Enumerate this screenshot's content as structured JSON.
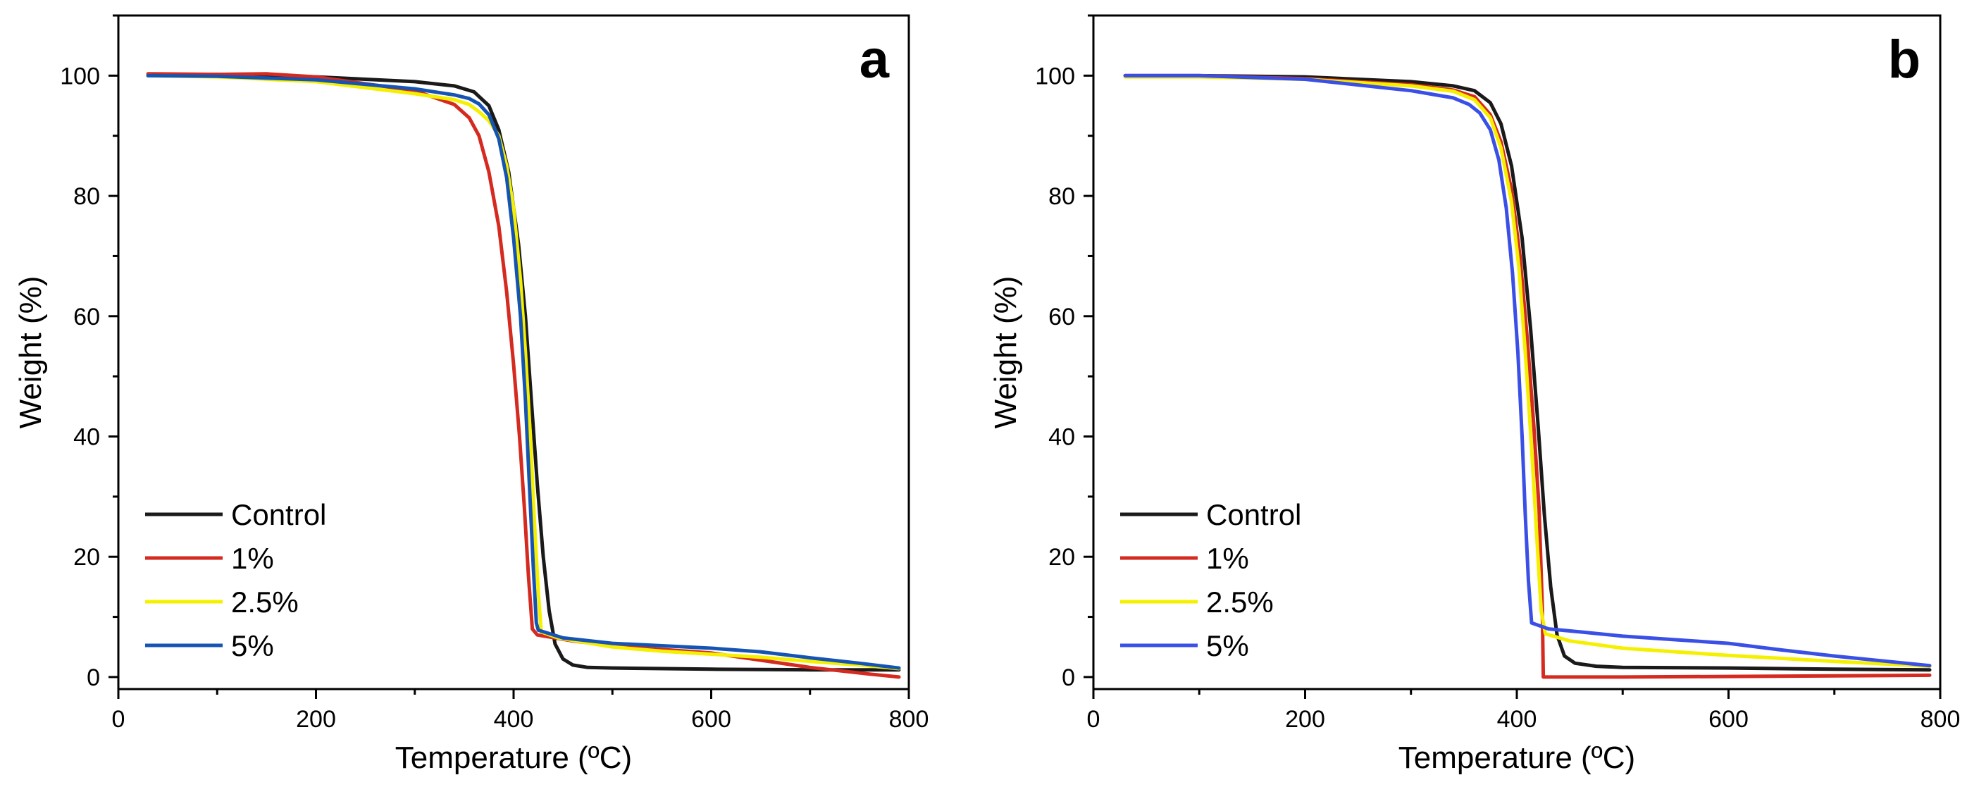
{
  "chart_data": [
    {
      "type": "line",
      "panel_label": "a",
      "xlabel": "Temperature (ºC)",
      "ylabel": "Weight (%)",
      "xlim": [
        0,
        800
      ],
      "ylim": [
        -2,
        110
      ],
      "xticks": [
        0,
        200,
        400,
        600,
        800
      ],
      "yticks": [
        0,
        20,
        40,
        60,
        80,
        100
      ],
      "grid": false,
      "legend_position": "bottom-left",
      "series": [
        {
          "name": "Control",
          "color": "#1a1a1a",
          "points": [
            [
              30,
              100
            ],
            [
              100,
              100.2
            ],
            [
              200,
              99.8
            ],
            [
              300,
              99
            ],
            [
              340,
              98.3
            ],
            [
              360,
              97.3
            ],
            [
              375,
              95
            ],
            [
              385,
              91
            ],
            [
              395,
              84
            ],
            [
              405,
              72
            ],
            [
              412,
              60
            ],
            [
              418,
              46
            ],
            [
              424,
              32
            ],
            [
              430,
              20
            ],
            [
              436,
              11
            ],
            [
              442,
              5.5
            ],
            [
              450,
              3
            ],
            [
              460,
              2
            ],
            [
              475,
              1.6
            ],
            [
              500,
              1.5
            ],
            [
              600,
              1.3
            ],
            [
              700,
              1.2
            ],
            [
              790,
              1.2
            ]
          ]
        },
        {
          "name": "1%",
          "color": "#d42a20",
          "points": [
            [
              30,
              100.3
            ],
            [
              100,
              100.2
            ],
            [
              150,
              100.3
            ],
            [
              200,
              99.8
            ],
            [
              300,
              97.5
            ],
            [
              340,
              95.2
            ],
            [
              355,
              93
            ],
            [
              365,
              90
            ],
            [
              375,
              84
            ],
            [
              385,
              75
            ],
            [
              393,
              64
            ],
            [
              400,
              52
            ],
            [
              406,
              40
            ],
            [
              411,
              28
            ],
            [
              415,
              17
            ],
            [
              419,
              8
            ],
            [
              424,
              7
            ],
            [
              460,
              6
            ],
            [
              500,
              5.2
            ],
            [
              550,
              4.6
            ],
            [
              600,
              4
            ],
            [
              650,
              2.8
            ],
            [
              700,
              1.6
            ],
            [
              760,
              0.5
            ],
            [
              790,
              0
            ]
          ]
        },
        {
          "name": "2.5%",
          "color": "#f5f000",
          "points": [
            [
              30,
              100
            ],
            [
              100,
              99.8
            ],
            [
              200,
              99
            ],
            [
              300,
              97
            ],
            [
              340,
              96
            ],
            [
              355,
              95.2
            ],
            [
              365,
              94
            ],
            [
              375,
              92.5
            ],
            [
              385,
              90
            ],
            [
              393,
              85
            ],
            [
              400,
              78
            ],
            [
              407,
              66
            ],
            [
              412,
              54
            ],
            [
              417,
              40
            ],
            [
              421,
              26
            ],
            [
              425,
              14
            ],
            [
              428,
              7.5
            ],
            [
              445,
              6.5
            ],
            [
              500,
              5
            ],
            [
              550,
              4.3
            ],
            [
              600,
              3.8
            ],
            [
              650,
              3.3
            ],
            [
              700,
              2.6
            ],
            [
              750,
              2
            ],
            [
              790,
              1.4
            ]
          ]
        },
        {
          "name": "5%",
          "color": "#1654b4",
          "points": [
            [
              30,
              100
            ],
            [
              100,
              99.9
            ],
            [
              200,
              99.3
            ],
            [
              300,
              97.8
            ],
            [
              340,
              96.8
            ],
            [
              355,
              96.2
            ],
            [
              365,
              95.3
            ],
            [
              375,
              93.5
            ],
            [
              385,
              89.5
            ],
            [
              393,
              83
            ],
            [
              400,
              73
            ],
            [
              407,
              60
            ],
            [
              412,
              46
            ],
            [
              416,
              32
            ],
            [
              420,
              18
            ],
            [
              423,
              9
            ],
            [
              425,
              7.8
            ],
            [
              450,
              6.5
            ],
            [
              500,
              5.6
            ],
            [
              550,
              5.2
            ],
            [
              600,
              4.8
            ],
            [
              650,
              4.2
            ],
            [
              700,
              3.2
            ],
            [
              750,
              2.3
            ],
            [
              790,
              1.5
            ]
          ]
        }
      ]
    },
    {
      "type": "line",
      "panel_label": "b",
      "xlabel": "Temperature (ºC)",
      "ylabel": "Weight (%)",
      "xlim": [
        0,
        800
      ],
      "ylim": [
        -2,
        110
      ],
      "xticks": [
        0,
        200,
        400,
        600,
        800
      ],
      "yticks": [
        0,
        20,
        40,
        60,
        80,
        100
      ],
      "grid": false,
      "legend_position": "bottom-left",
      "series": [
        {
          "name": "Control",
          "color": "#1a1a1a",
          "points": [
            [
              30,
              100
            ],
            [
              100,
              100
            ],
            [
              200,
              99.8
            ],
            [
              300,
              99
            ],
            [
              340,
              98.3
            ],
            [
              360,
              97.5
            ],
            [
              375,
              95.5
            ],
            [
              385,
              92
            ],
            [
              395,
              85
            ],
            [
              405,
              73
            ],
            [
              413,
              58
            ],
            [
              420,
              42
            ],
            [
              426,
              27
            ],
            [
              432,
              15
            ],
            [
              438,
              7
            ],
            [
              445,
              3.5
            ],
            [
              455,
              2.3
            ],
            [
              475,
              1.8
            ],
            [
              500,
              1.6
            ],
            [
              600,
              1.5
            ],
            [
              700,
              1.3
            ],
            [
              790,
              1.2
            ]
          ]
        },
        {
          "name": "1%",
          "color": "#d42a20",
          "points": [
            [
              30,
              100
            ],
            [
              100,
              100
            ],
            [
              200,
              99.5
            ],
            [
              300,
              98.5
            ],
            [
              340,
              97.6
            ],
            [
              360,
              96.5
            ],
            [
              375,
              93.5
            ],
            [
              385,
              89
            ],
            [
              395,
              81
            ],
            [
              403,
              70
            ],
            [
              410,
              56
            ],
            [
              416,
              42
            ],
            [
              421,
              28
            ],
            [
              424,
              12
            ],
            [
              425,
              0
            ],
            [
              500,
              0
            ],
            [
              600,
              0.1
            ],
            [
              700,
              0.2
            ],
            [
              790,
              0.3
            ]
          ]
        },
        {
          "name": "2.5%",
          "color": "#f5f000",
          "points": [
            [
              30,
              99.8
            ],
            [
              100,
              99.8
            ],
            [
              200,
              99.4
            ],
            [
              300,
              98.3
            ],
            [
              340,
              97.4
            ],
            [
              360,
              96
            ],
            [
              375,
              93
            ],
            [
              385,
              88
            ],
            [
              395,
              79
            ],
            [
              402,
              68
            ],
            [
              408,
              54
            ],
            [
              414,
              38
            ],
            [
              419,
              23
            ],
            [
              423,
              11
            ],
            [
              427,
              7.2
            ],
            [
              450,
              6
            ],
            [
              500,
              4.8
            ],
            [
              550,
              4.2
            ],
            [
              600,
              3.6
            ],
            [
              700,
              2.6
            ],
            [
              790,
              1.8
            ]
          ]
        },
        {
          "name": "5%",
          "color": "#3a4fe6",
          "points": [
            [
              30,
              100
            ],
            [
              100,
              100
            ],
            [
              200,
              99.4
            ],
            [
              300,
              97.5
            ],
            [
              340,
              96.3
            ],
            [
              355,
              95.2
            ],
            [
              365,
              93.8
            ],
            [
              375,
              91
            ],
            [
              383,
              86
            ],
            [
              390,
              78
            ],
            [
              396,
              67
            ],
            [
              401,
              54
            ],
            [
              405,
              40
            ],
            [
              408,
              27
            ],
            [
              411,
              16
            ],
            [
              414,
              9
            ],
            [
              430,
              8
            ],
            [
              460,
              7.5
            ],
            [
              500,
              6.8
            ],
            [
              550,
              6.2
            ],
            [
              600,
              5.6
            ],
            [
              650,
              4.5
            ],
            [
              700,
              3.5
            ],
            [
              750,
              2.6
            ],
            [
              790,
              1.9
            ]
          ]
        }
      ]
    }
  ]
}
